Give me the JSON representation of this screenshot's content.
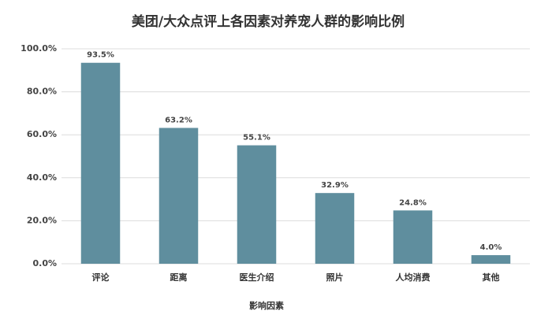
{
  "chart_data": {
    "type": "bar",
    "title": "美团/大众点评上各因素对养宠人群的影响比例",
    "x_label": "影响因素",
    "categories": [
      "评论",
      "距离",
      "医生介绍",
      "照片",
      "人均消费",
      "其他"
    ],
    "values": [
      93.5,
      63.2,
      55.1,
      32.9,
      24.8,
      4.0
    ],
    "value_labels": [
      "93.5%",
      "63.2%",
      "55.1%",
      "32.9%",
      "24.8%",
      "4.0%"
    ],
    "color": "#5f8e9e",
    "ylim": [
      0,
      100
    ],
    "yticks": [
      {
        "value": 0,
        "label": "0.0%"
      },
      {
        "value": 20,
        "label": "20.0%"
      },
      {
        "value": 40,
        "label": "40.0%"
      },
      {
        "value": 60,
        "label": "60.0%"
      },
      {
        "value": 80,
        "label": "80.0%"
      },
      {
        "value": 100,
        "label": "100.0%"
      }
    ],
    "grid": true
  }
}
